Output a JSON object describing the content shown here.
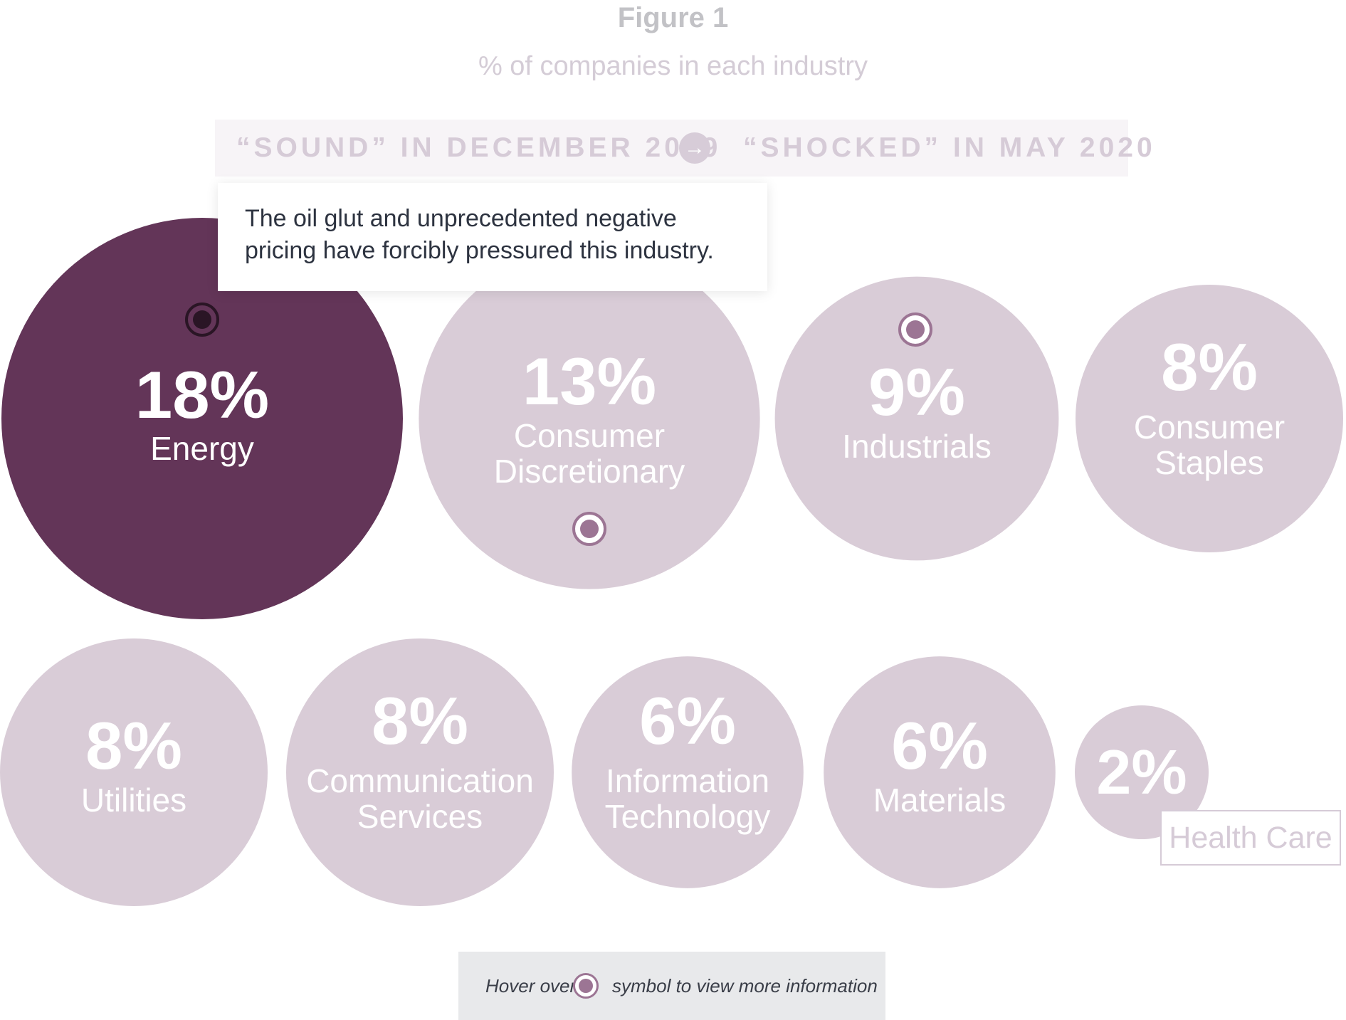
{
  "title": "Figure 1",
  "subtitle": "% of companies in each industry",
  "toggle": {
    "left_label": "“SOUND” IN DECEMBER 2019",
    "right_label": "“SHOCKED” IN MAY 2020",
    "arrow": "→"
  },
  "tooltip": {
    "text": "The oil glut and unprecedented negative pricing have forcibly pressured this industry."
  },
  "legend": {
    "before": "Hover over",
    "after": "symbol to view more information",
    "icon": "info-dot-icon"
  },
  "colors": {
    "highlight": "#633558",
    "bubble": "#d9ccd7",
    "dot": "#9c7594",
    "text_on_bubble": "#ffffff"
  },
  "chart_data": {
    "type": "bubble",
    "title": "Figure 1",
    "subtitle": "% of companies in each industry",
    "unit": "%",
    "items": [
      {
        "label": "Energy",
        "value": 18,
        "display": "18%",
        "highlighted": true,
        "has_info": true
      },
      {
        "label": "Consumer Discretionary",
        "value": 13,
        "display": "13%",
        "highlighted": false,
        "has_info": true
      },
      {
        "label": "Industrials",
        "value": 9,
        "display": "9%",
        "highlighted": false,
        "has_info": true
      },
      {
        "label": "Consumer Staples",
        "value": 8,
        "display": "8%",
        "highlighted": false,
        "has_info": false
      },
      {
        "label": "Utilities",
        "value": 8,
        "display": "8%",
        "highlighted": false,
        "has_info": false
      },
      {
        "label": "Communication Services",
        "value": 8,
        "display": "8%",
        "highlighted": false,
        "has_info": false
      },
      {
        "label": "Information Technology",
        "value": 6,
        "display": "6%",
        "highlighted": false,
        "has_info": false
      },
      {
        "label": "Materials",
        "value": 6,
        "display": "6%",
        "highlighted": false,
        "has_info": false
      },
      {
        "label": "Health Care",
        "value": 2,
        "display": "2%",
        "highlighted": false,
        "has_info": false
      }
    ]
  }
}
